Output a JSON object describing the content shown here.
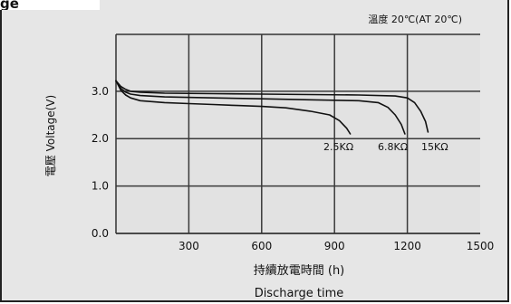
{
  "header": {
    "cropped_label": "ge"
  },
  "chart_data": {
    "type": "line",
    "annotation": "溫度 20℃(AT 20℃)",
    "ylabel": "電壓 Voltage(V)",
    "xlabel_cn": "持續放電時間 (h)",
    "xlabel_en": "Discharge time",
    "x_ticks": [
      300,
      600,
      900,
      1200,
      1500
    ],
    "y_ticks": [
      0.0,
      1.0,
      2.0,
      3.0
    ],
    "y_tick_labels": [
      "0.0",
      "1.0",
      "2.0",
      "3.0"
    ],
    "xlim": [
      0,
      1500
    ],
    "ylim": [
      0,
      4.2
    ],
    "grid": true,
    "series_labels": [
      "2.5KΩ",
      "6.8KΩ",
      "15KΩ"
    ],
    "series": [
      {
        "name": "2.5KΩ",
        "x": [
          0,
          20,
          40,
          60,
          100,
          200,
          300,
          400,
          500,
          600,
          700,
          800,
          880,
          920,
          950,
          965
        ],
        "y": [
          3.22,
          3.02,
          2.92,
          2.86,
          2.8,
          2.76,
          2.74,
          2.72,
          2.7,
          2.68,
          2.65,
          2.58,
          2.5,
          2.38,
          2.22,
          2.1
        ]
      },
      {
        "name": "6.8KΩ",
        "x": [
          0,
          20,
          40,
          60,
          100,
          200,
          400,
          600,
          800,
          1000,
          1080,
          1120,
          1150,
          1175,
          1190
        ],
        "y": [
          3.22,
          3.06,
          2.98,
          2.94,
          2.91,
          2.88,
          2.86,
          2.84,
          2.82,
          2.8,
          2.76,
          2.66,
          2.5,
          2.3,
          2.1
        ]
      },
      {
        "name": "15KΩ",
        "x": [
          0,
          20,
          40,
          60,
          100,
          200,
          400,
          600,
          800,
          1000,
          1150,
          1200,
          1230,
          1255,
          1275,
          1285
        ],
        "y": [
          3.22,
          3.1,
          3.04,
          3.0,
          2.98,
          2.96,
          2.95,
          2.94,
          2.93,
          2.92,
          2.9,
          2.86,
          2.76,
          2.58,
          2.36,
          2.14
        ]
      }
    ]
  }
}
